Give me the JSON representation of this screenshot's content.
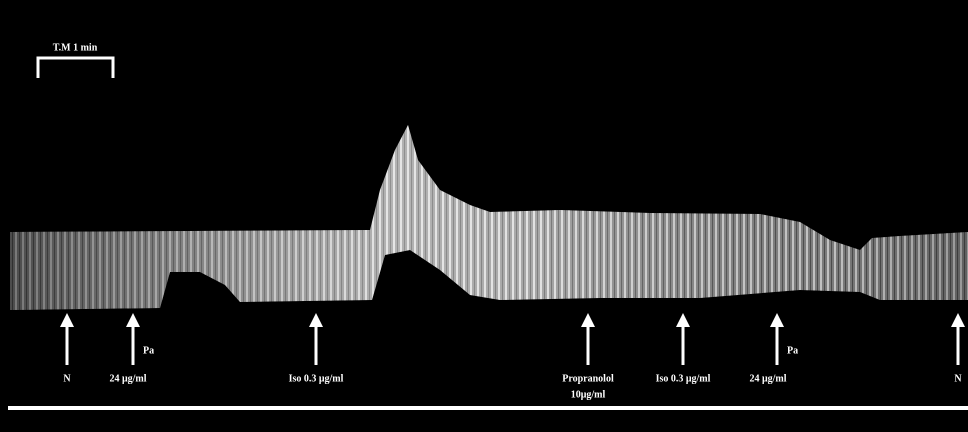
{
  "scale_bar": {
    "label": "T.M 1 min"
  },
  "annotations": [
    {
      "label": "N"
    },
    {
      "tag": "Pa",
      "label": "24 μg/ml"
    },
    {
      "label": "Iso 0.3 μg/ml"
    },
    {
      "label": "Propranolol",
      "sublabel": "10μg/ml"
    },
    {
      "label": "Iso 0.3 μg/ml"
    },
    {
      "tag": "Pa",
      "label": "24 μg/ml"
    },
    {
      "label": "N"
    }
  ]
}
